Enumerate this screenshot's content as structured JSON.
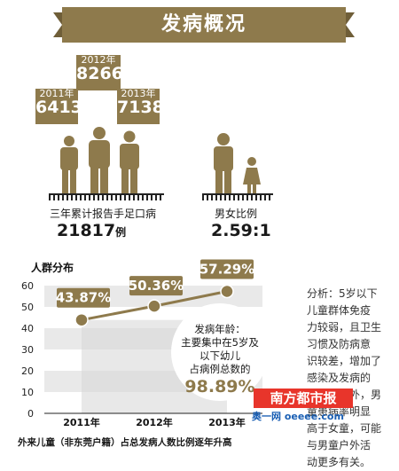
{
  "header": {
    "title": "发病概况"
  },
  "cases": [
    {
      "year": "2011年",
      "value": "6413"
    },
    {
      "year": "2012年",
      "value": "8266"
    },
    {
      "year": "2013年",
      "value": "7138"
    }
  ],
  "total": {
    "label": "三年累计报告手足口病",
    "value": "21817",
    "unit": "例"
  },
  "ratio": {
    "label": "男女比例",
    "value": "2.59:1"
  },
  "chart_data": {
    "type": "line",
    "title": "人群分布",
    "x": [
      "2011年",
      "2012年",
      "2013年"
    ],
    "series": [
      {
        "values": [
          43.87,
          50.36,
          57.29
        ]
      }
    ],
    "data_labels": [
      "43.87%",
      "50.36%",
      "57.29%"
    ],
    "ylim": [
      0,
      60
    ],
    "yticks": [
      "0",
      "10",
      "20",
      "30",
      "40",
      "50",
      "60"
    ],
    "caption": "外来儿童（非东莞户籍）占总发病人数比例逐年升高",
    "colors": {
      "line": "#8e7a4c",
      "label_bg": "#8e7a4c",
      "band": "#e9e9e9"
    }
  },
  "age_bubble": {
    "title": "发病年龄：",
    "line1": "主要集中在5岁及",
    "line2": "以下幼儿",
    "line3": "占病例总数的",
    "value": "98.89%"
  },
  "analysis": {
    "lines": [
      "分析：5岁以下",
      "儿童群体免疫",
      "力较弱，且卫生",
      "习惯及防病意",
      "识较差，增加了",
      "感染及发病的",
      "机会。另外，男",
      "童患病率明显",
      "高于女童，可能",
      "与男童户外活",
      "动更多有关。"
    ]
  },
  "watermark": {
    "brand": "南方都市报",
    "site": "奥一网 oeeee.com"
  },
  "colors": {
    "accent": "#8e7a4c",
    "dark": "#6f5e38"
  }
}
